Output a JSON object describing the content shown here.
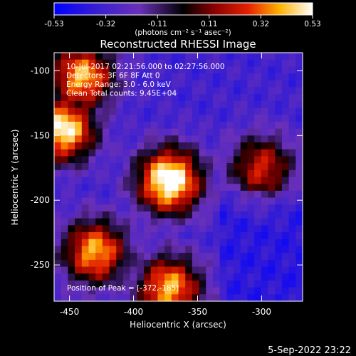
{
  "colorbar": {
    "tick_labels": [
      "-0.53",
      "-0.32",
      "-0.11",
      "0.11",
      "0.32",
      "0.53"
    ],
    "unit_label": "(photons cm⁻² s⁻¹ asec⁻²)",
    "range": [
      -0.53,
      0.53
    ]
  },
  "chart_data": {
    "type": "heatmap",
    "title": "Reconstructed RHESSI Image",
    "xlabel": "Heliocentric X (arcsec)",
    "ylabel": "Heliocentric Y (arcsec)",
    "xlim": [
      -462,
      -268
    ],
    "ylim": [
      -278,
      -86
    ],
    "x_ticks": [
      -450,
      -400,
      -350,
      -300
    ],
    "y_ticks": [
      -100,
      -150,
      -200,
      -250
    ],
    "annotations": [
      "10-Jul-2017 02:21:56.000 to 02:27:56.000",
      "Detectors: 3F 6F 8F  Att 0",
      "Energy Range: 3.0 - 6.0 keV",
      "Clean     Total counts: 9.45E+04"
    ],
    "peak_label": "Position of Peak = [-372,-185]",
    "peak": [
      -372,
      -185
    ],
    "sources": [
      {
        "x": -372,
        "y": -185,
        "value": 0.53
      },
      {
        "x": -455,
        "y": -145,
        "value": 0.45
      },
      {
        "x": -440,
        "y": -105,
        "value": 0.35
      },
      {
        "x": -430,
        "y": -240,
        "value": 0.33
      },
      {
        "x": -372,
        "y": -268,
        "value": 0.34
      },
      {
        "x": -300,
        "y": -175,
        "value": 0.15
      }
    ]
  },
  "footer": {
    "timestamp": "5-Sep-2022 23:22"
  }
}
